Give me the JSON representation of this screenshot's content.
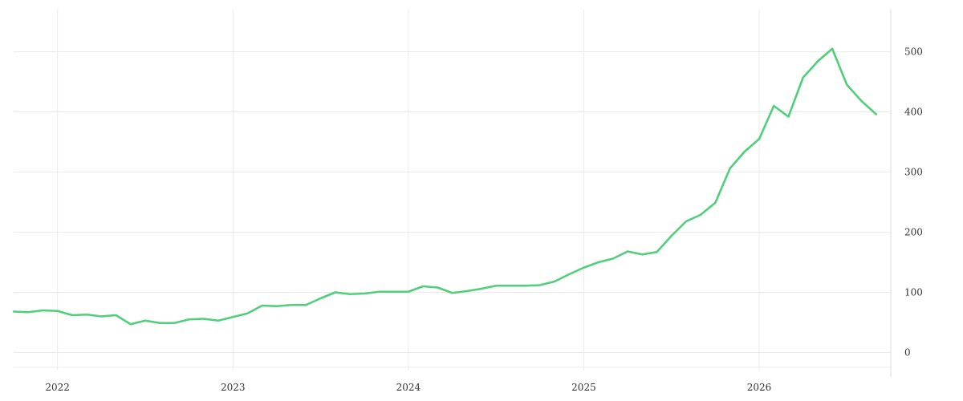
{
  "chart_data": {
    "type": "line",
    "title": "",
    "xlabel": "",
    "ylabel": "",
    "x_tick_labels": [
      "2022",
      "2023",
      "2024",
      "2025",
      "2026"
    ],
    "y_tick_labels": [
      "0",
      "100",
      "200",
      "300",
      "400",
      "500"
    ],
    "y_ticks": [
      0,
      100,
      200,
      300,
      400,
      500
    ],
    "ylim": [
      -30,
      570
    ],
    "x_range": [
      "2021-10",
      "2026-10"
    ],
    "y_axis_position": "right",
    "grid": true,
    "line_color": "#4fcf7a",
    "series": [
      {
        "x": [
          "2021-10",
          "2021-11",
          "2021-12",
          "2022-01",
          "2022-02",
          "2022-03",
          "2022-04",
          "2022-05",
          "2022-06",
          "2022-07",
          "2022-08",
          "2022-09",
          "2022-10",
          "2022-11",
          "2022-12",
          "2023-01",
          "2023-02",
          "2023-03",
          "2023-04",
          "2023-05",
          "2023-06",
          "2023-07",
          "2023-08",
          "2023-09",
          "2023-10",
          "2023-11",
          "2023-12",
          "2024-01",
          "2024-02",
          "2024-03",
          "2024-04",
          "2024-05",
          "2024-06",
          "2024-07",
          "2024-08",
          "2024-09",
          "2024-10",
          "2024-11",
          "2024-12",
          "2025-01",
          "2025-02",
          "2025-03",
          "2025-04",
          "2025-05",
          "2025-06",
          "2025-07",
          "2025-08",
          "2025-09",
          "2025-10",
          "2025-11",
          "2025-12",
          "2026-01",
          "2026-02",
          "2026-03",
          "2026-04",
          "2026-05",
          "2026-06",
          "2026-07",
          "2026-08",
          "2026-09"
        ],
        "values": [
          68,
          67,
          70,
          69,
          62,
          63,
          60,
          62,
          47,
          53,
          49,
          49,
          55,
          56,
          53,
          59,
          65,
          78,
          77,
          79,
          79,
          90,
          100,
          97,
          98,
          101,
          101,
          101,
          110,
          108,
          99,
          102,
          106,
          111,
          111,
          111,
          112,
          118,
          130,
          141,
          150,
          156,
          168,
          163,
          167,
          194,
          218,
          229,
          249,
          306,
          334,
          355,
          410,
          392,
          457,
          484,
          505,
          445,
          418,
          396
        ]
      }
    ]
  }
}
